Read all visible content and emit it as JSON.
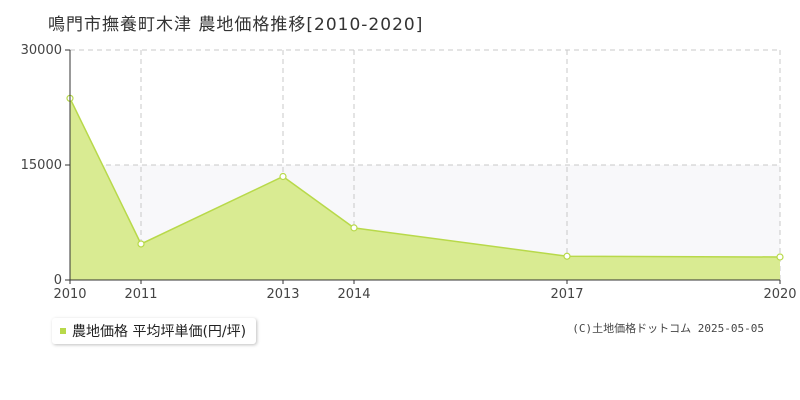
{
  "title": "鳴門市撫養町木津 農地価格推移[2010-2020]",
  "legend": {
    "label": "農地価格 平均坪単価(円/坪)"
  },
  "source": "(C)土地価格ドットコム 2025-05-05",
  "colors": {
    "line": "#b8d94a",
    "fill": "#d9eb92",
    "marker_fill": "#ffffff",
    "legend_swatch": "#b8d94a",
    "band": "#f8f8fa",
    "grid": "#c8c8c8",
    "axis": "#333333"
  },
  "chart_data": {
    "type": "area",
    "title": "鳴門市撫養町木津 農地価格推移[2010-2020]",
    "xlabel": "",
    "ylabel": "",
    "x": [
      2010,
      2011,
      2013,
      2014,
      2017,
      2020
    ],
    "x_tick_labels": [
      "2010",
      "2011",
      "2013",
      "2014",
      "2017",
      "2020"
    ],
    "y_ticks": [
      0,
      15000,
      30000
    ],
    "y_tick_labels": [
      "0",
      "15000",
      "30000"
    ],
    "ylim": [
      0,
      30000
    ],
    "grid": true,
    "legend_position": "bottom-left",
    "series": [
      {
        "name": "農地価格 平均坪単価(円/坪)",
        "values": [
          23700,
          4700,
          13500,
          6800,
          3100,
          3000
        ]
      }
    ]
  }
}
